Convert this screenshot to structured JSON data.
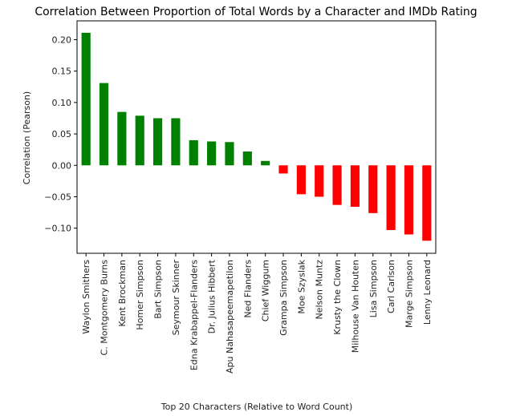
{
  "chart_data": {
    "type": "bar",
    "title": "Correlation Between Proportion of Total Words by a Character and IMDb Rating",
    "xlabel": "Top 20 Characters (Relative to Word Count)",
    "ylabel": "Correlation (Pearson)",
    "ylim": [
      -0.14,
      0.23
    ],
    "yticks": [
      0.2,
      0.15,
      0.1,
      0.05,
      0.0,
      -0.05,
      -0.1
    ],
    "ytick_labels": [
      "0.20",
      "0.15",
      "0.10",
      "0.05",
      "0.00",
      "−0.05",
      "−0.10"
    ],
    "grid": false,
    "legend": "none",
    "colors": {
      "positive": "#008000",
      "negative": "#ff0000"
    },
    "categories": [
      "Waylon Smithers",
      "C. Montgomery Burns",
      "Kent Brockman",
      "Homer Simpson",
      "Bart Simpson",
      "Seymour Skinner",
      "Edna Krabappel-Flanders",
      "Dr. Julius Hibbert",
      "Apu Nahasapeemapetilon",
      "Ned Flanders",
      "Chief Wiggum",
      "Grampa Simpson",
      "Moe Szyslak",
      "Nelson Muntz",
      "Krusty the Clown",
      "Milhouse Van Houten",
      "Lisa Simpson",
      "Carl Carlson",
      "Marge Simpson",
      "Lenny Leonard"
    ],
    "values": [
      0.211,
      0.131,
      0.085,
      0.079,
      0.075,
      0.075,
      0.04,
      0.038,
      0.037,
      0.022,
      0.007,
      -0.013,
      -0.046,
      -0.05,
      -0.063,
      -0.066,
      -0.076,
      -0.103,
      -0.11,
      -0.12
    ]
  }
}
